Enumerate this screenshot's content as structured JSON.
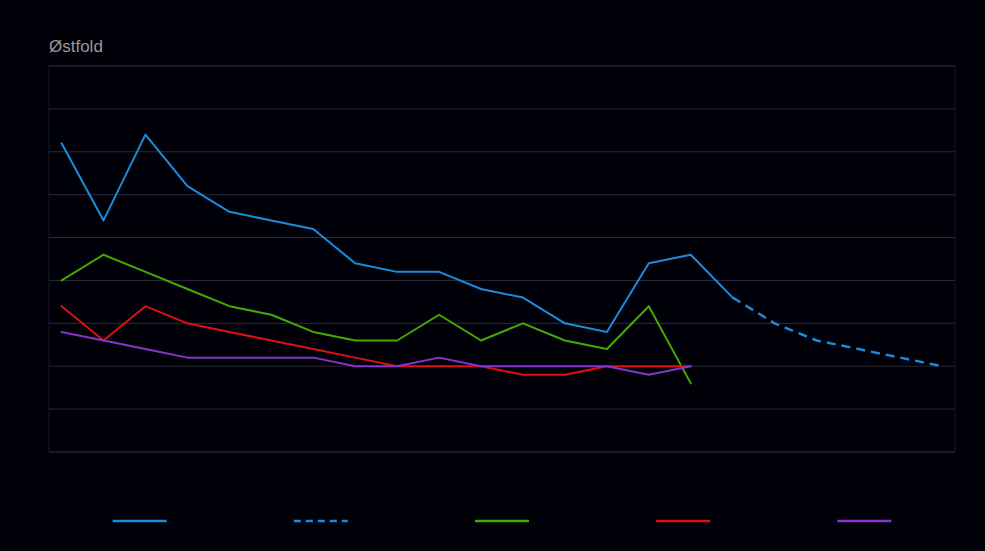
{
  "chart_data": {
    "type": "line",
    "title": "Østfold",
    "x": [
      0,
      1,
      2,
      3,
      4,
      5,
      6,
      7,
      8,
      9,
      10,
      11,
      12,
      13,
      14,
      15,
      16,
      17,
      18,
      19,
      20,
      21
    ],
    "series": [
      {
        "color": "#1b8cdd",
        "line_style": "solid",
        "values": [
          36,
          27,
          37,
          31,
          28,
          27,
          26,
          22,
          21,
          21,
          19,
          18,
          15,
          14,
          22,
          23,
          18,
          null,
          null,
          null,
          null,
          null
        ]
      },
      {
        "color": "#1b8cdd",
        "line_style": "dashed",
        "values": [
          null,
          null,
          null,
          null,
          null,
          null,
          null,
          null,
          null,
          null,
          null,
          null,
          null,
          null,
          null,
          null,
          18,
          15,
          13,
          12,
          11,
          10
        ]
      },
      {
        "color": "#44aa00",
        "line_style": "solid",
        "values": [
          20,
          23,
          21,
          19,
          17,
          16,
          14,
          13,
          13,
          16,
          13,
          15,
          13,
          12,
          17,
          8,
          null,
          null,
          null,
          null,
          null,
          null
        ]
      },
      {
        "color": "#dd1111",
        "line_style": "solid",
        "values": [
          17,
          13,
          17,
          15,
          14,
          13,
          12,
          11,
          10,
          10,
          10,
          9,
          9,
          10,
          10,
          10,
          null,
          null,
          null,
          null,
          null,
          null
        ]
      },
      {
        "color": "#8833cc",
        "line_style": "solid",
        "values": [
          14,
          13,
          12,
          11,
          11,
          11,
          11,
          10,
          10,
          11,
          10,
          10,
          10,
          10,
          9,
          10,
          null,
          null,
          null,
          null,
          null,
          null
        ]
      }
    ],
    "xlim": [
      -0.3,
      21.3
    ],
    "ylim": [
      0,
      45
    ],
    "yticks": [
      0,
      5,
      10,
      15,
      20,
      25,
      30,
      35,
      40,
      45
    ],
    "grid": true,
    "tick_labels": false,
    "legend": "bottom"
  }
}
